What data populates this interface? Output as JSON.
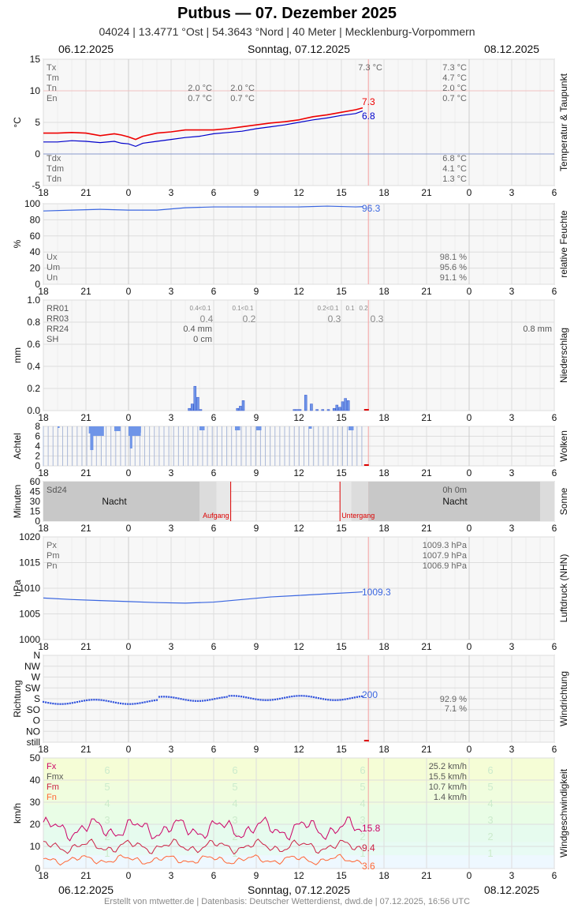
{
  "header": {
    "title": "Putbus  —  07. Dezember 2025",
    "subtitle": "04024  |  13.4771 °Ost  |  54.3643 °Nord  |  40 Meter  |  Mecklenburg-Vorpommern",
    "date_left": "06.12.2025",
    "date_center": "Sonntag, 07.12.2025",
    "date_right": "08.12.2025"
  },
  "footer": "Erstellt von mtwetter.de | Datenbasis: Deutscher Wetterdienst, dwd.de | 07.12.2025, 16:56 UTC",
  "x_tick_labels": [
    "18",
    "21",
    "0",
    "3",
    "6",
    "9",
    "12",
    "15",
    "18",
    "21",
    "0",
    "3",
    "6"
  ],
  "colors": {
    "temp": "#ee0000",
    "dew": "#0000cc",
    "blue": "#3a66e0",
    "bar": "#6f95e8",
    "grid": "#dddddd",
    "now": "#f4a0a0",
    "sun_red": "#dd0000",
    "wind_gust": "#cc0066",
    "wind_mean": "#cc2244",
    "wind_min": "#ff6633"
  },
  "chart_data": [
    {
      "type": "line",
      "name": "temperature",
      "ylabel": "°C",
      "side_label": "Temperatur & Taupunkt",
      "ylim": [
        -5,
        15
      ],
      "y_ticks": [
        "15",
        "10",
        "5",
        "0",
        "-5"
      ],
      "x_unit": "hours since 06.12.2025 18:00",
      "xlim": [
        0,
        36
      ],
      "series": [
        {
          "name": "temp",
          "x": [
            0,
            1,
            2,
            3,
            4,
            5,
            5.5,
            6,
            6.5,
            7,
            8,
            9,
            10,
            11,
            12,
            13,
            14,
            15,
            16,
            17,
            18,
            19,
            20,
            21,
            22,
            22.5
          ],
          "values": [
            3.3,
            3.3,
            3.4,
            3.3,
            2.9,
            3.2,
            3.0,
            2.7,
            2.3,
            2.8,
            3.3,
            3.5,
            3.8,
            3.8,
            3.8,
            4.0,
            4.3,
            4.6,
            4.9,
            5.1,
            5.4,
            5.9,
            6.2,
            6.6,
            7.0,
            7.3
          ]
        },
        {
          "name": "dew",
          "x": [
            0,
            1,
            2,
            3,
            4,
            5,
            5.5,
            6,
            6.5,
            7,
            8,
            9,
            10,
            11,
            12,
            13,
            14,
            15,
            16,
            17,
            18,
            19,
            20,
            21,
            22,
            22.5
          ],
          "values": [
            1.9,
            1.9,
            2.1,
            2.0,
            1.8,
            2.0,
            1.7,
            1.6,
            1.2,
            1.7,
            2.0,
            2.3,
            2.6,
            2.8,
            3.2,
            3.4,
            3.6,
            4.0,
            4.3,
            4.6,
            5.0,
            5.4,
            5.7,
            6.1,
            6.4,
            6.8
          ]
        }
      ],
      "end_labels": [
        "7.3",
        "6.8"
      ],
      "stats_top": {
        "labels": [
          "Tx",
          "Tm",
          "Tn",
          "En"
        ],
        "day1": [
          "",
          "",
          "2.0 °C",
          "0.7 °C"
        ],
        "day1b": [
          "",
          "",
          "2.0 °C",
          "0.7 °C"
        ],
        "mid": "7.3 °C",
        "day2": [
          "7.3 °C",
          "4.7 °C",
          "2.0 °C",
          "0.7 °C"
        ]
      },
      "stats_bottom": {
        "labels": [
          "Tdx",
          "Tdm",
          "Tdn"
        ],
        "day2": [
          "6.8 °C",
          "4.1 °C",
          "1.3 °C"
        ]
      }
    },
    {
      "type": "line",
      "name": "humidity",
      "ylabel": "%",
      "side_label": "relative Feuchte",
      "ylim": [
        0,
        100
      ],
      "y_ticks": [
        "100",
        "80",
        "60",
        "40",
        "20",
        "0"
      ],
      "series": [
        {
          "name": "rh",
          "x": [
            0,
            2,
            4,
            6,
            8,
            10,
            12,
            14,
            16,
            18,
            20,
            22,
            22.5
          ],
          "values": [
            91,
            92,
            93,
            92,
            92,
            95,
            96,
            96,
            96,
            96,
            97,
            96,
            96.3
          ]
        }
      ],
      "end_label": "96.3",
      "stats": {
        "labels": [
          "Ux",
          "Um",
          "Un"
        ],
        "day2": [
          "98.1 %",
          "95.6 %",
          "91.1 %"
        ]
      }
    },
    {
      "type": "bar",
      "name": "precipitation",
      "ylabel": "mm",
      "side_label": "Niederschlag",
      "ylim": [
        0,
        1.0
      ],
      "y_ticks": [
        "1.0",
        "0.8",
        "0.6",
        "0.4",
        "0.2",
        "0.0"
      ],
      "x": [
        10.2,
        10.4,
        10.6,
        10.8,
        11.0,
        13.6,
        13.8,
        14.0,
        17.6,
        17.8,
        18.0,
        18.4,
        18.8,
        19.2,
        19.6,
        20.0,
        20.4,
        20.6,
        20.8,
        21.0,
        21.2,
        21.4
      ],
      "values": [
        0.02,
        0.06,
        0.22,
        0.12,
        0.01,
        0.02,
        0.04,
        0.09,
        0.01,
        0.01,
        0.01,
        0.14,
        0.06,
        0.01,
        0.01,
        0.01,
        0.02,
        0.05,
        0.03,
        0.08,
        0.11,
        0.09
      ],
      "labels": {
        "rows": [
          "RR01",
          "RR03",
          "RR24",
          "SH"
        ],
        "rr01_d1": "0.4<0.1",
        "rr01_d1b": "0.1<0.1",
        "rr03_d1": "0.4",
        "rr03_d1b": "0.2",
        "rr01_d2a": "0.2<0.1",
        "rr01_d2b": "0.1",
        "rr01_d2c": "0.2",
        "rr03_d2a": "0.3",
        "rr03_d2b": "0.3",
        "rr24_d1": "0.4 mm",
        "sh_d1": "0 cm",
        "rr24_d2": "0.8 mm"
      }
    },
    {
      "type": "bar",
      "name": "clouds",
      "ylabel": "Achtel",
      "side_label": "Wolken",
      "ylim": [
        0,
        8
      ],
      "y_ticks": [
        "8",
        "6",
        "4",
        "2",
        "0"
      ],
      "note": "hourly cloud cover in eighths, mostly overcast (8/8)"
    },
    {
      "type": "area",
      "name": "sunshine",
      "ylabel": "Minuten",
      "side_label": "Sonne",
      "ylim": [
        0,
        60
      ],
      "y_ticks": [
        "60",
        "45",
        "30",
        "15",
        "0"
      ],
      "labels": {
        "sd24": "Sd24",
        "night1": "Nacht",
        "night2": "Nacht",
        "sunrise": "Aufgang",
        "sunset": "Untergang",
        "total": "0h 0m"
      },
      "sunrise_x": 13.2,
      "sunset_x": 20.9
    },
    {
      "type": "line",
      "name": "pressure",
      "ylabel": "hPa",
      "side_label": "Luftdruck (NHN)",
      "ylim": [
        1000,
        1020
      ],
      "y_ticks": [
        "1020",
        "1015",
        "1010",
        "1005",
        "1000"
      ],
      "series": [
        {
          "name": "p",
          "x": [
            0,
            2,
            4,
            6,
            8,
            10,
            12,
            14,
            16,
            18,
            20,
            22,
            22.5
          ],
          "values": [
            1008.1,
            1007.8,
            1007.6,
            1007.4,
            1007.2,
            1007.1,
            1007.3,
            1007.8,
            1008.3,
            1008.6,
            1008.9,
            1009.2,
            1009.3
          ]
        }
      ],
      "end_label": "1009.3",
      "stats": {
        "labels": [
          "Px",
          "Pm",
          "Pn"
        ],
        "day2": [
          "1009.3 hPa",
          "1007.9 hPa",
          "1006.9 hPa"
        ]
      }
    },
    {
      "type": "scatter",
      "name": "wind_direction",
      "ylabel": "Richtung",
      "side_label": "Windrichtung",
      "y_ticks": [
        "N",
        "NW",
        "W",
        "SW",
        "S",
        "SO",
        "O",
        "NO",
        "still"
      ],
      "end_label": "200",
      "stats": {
        "day2": [
          "92.9 %",
          "7.1 %"
        ]
      }
    },
    {
      "type": "line",
      "name": "wind_speed",
      "ylabel": "km/h",
      "side_label": "Windgeschwindigkeit",
      "ylim": [
        0,
        50
      ],
      "y_ticks": [
        "50",
        "40",
        "30",
        "20",
        "10",
        "0"
      ],
      "beaufort": [
        "6",
        "5",
        "4",
        "3",
        "2",
        "1"
      ],
      "end_labels": [
        "15.8",
        "9.4",
        "3.6"
      ],
      "stats": {
        "labels": [
          "Fx",
          "Fmx",
          "Fm",
          "Fn"
        ],
        "day2": [
          "25.2 km/h",
          "15.5 km/h",
          "10.7 km/h",
          "1.4 km/h"
        ]
      }
    }
  ]
}
